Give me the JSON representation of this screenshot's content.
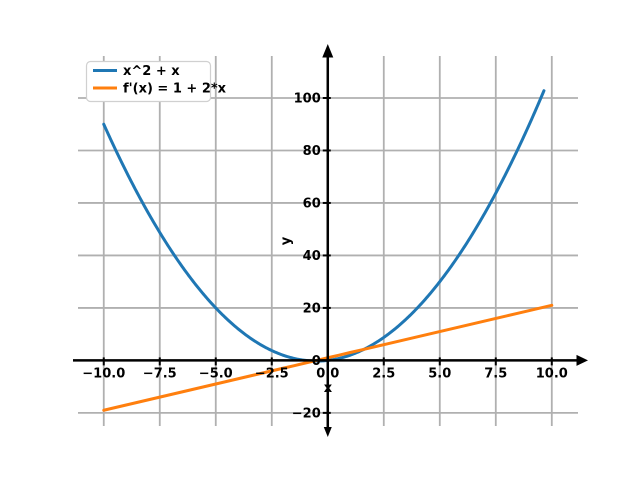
{
  "chart_data": {
    "type": "line",
    "title": "",
    "xlabel": "x",
    "ylabel": "y",
    "xlim": [
      -11.15,
      11.17
    ],
    "ylim": [
      -25,
      116
    ],
    "grid": true,
    "x_ticks": [
      -10,
      -7.5,
      -5,
      -2.5,
      0,
      2.5,
      5,
      7.5,
      10
    ],
    "x_tick_labels": [
      "−10.0",
      "−7.5",
      "−5.0",
      "−2.5",
      "0.0",
      "2.5",
      "5.0",
      "7.5",
      "10.0"
    ],
    "y_ticks": [
      -20,
      0,
      20,
      40,
      60,
      80,
      100
    ],
    "y_tick_labels": [
      "−20",
      "0",
      "20",
      "40",
      "60",
      "80",
      "100"
    ],
    "series": [
      {
        "name": "x^2 + x",
        "formula": "y = x^2 + x",
        "coeffs": [
          0,
          1,
          1
        ],
        "color": "#1f77b4",
        "x_range": [
          -10,
          9.65
        ],
        "step": 0.05,
        "sample_points": [
          {
            "x": -10,
            "y": 90
          },
          {
            "x": -7.5,
            "y": 48.75
          },
          {
            "x": -5,
            "y": 20
          },
          {
            "x": -2.5,
            "y": 3.75
          },
          {
            "x": -0.5,
            "y": -0.25
          },
          {
            "x": 0,
            "y": 0
          },
          {
            "x": 2.5,
            "y": 8.75
          },
          {
            "x": 5,
            "y": 30
          },
          {
            "x": 7.5,
            "y": 63.75
          },
          {
            "x": 9.65,
            "y": 102.77
          }
        ]
      },
      {
        "name": "f'(x) = 1 + 2*x",
        "formula": "y = 1 + 2x",
        "coeffs": [
          1,
          2
        ],
        "color": "#ff7f0e",
        "x_range": [
          -10,
          10
        ],
        "step": 0.5,
        "sample_points": [
          {
            "x": -10,
            "y": -19
          },
          {
            "x": -5,
            "y": -9
          },
          {
            "x": -0.5,
            "y": 0
          },
          {
            "x": 0,
            "y": 1
          },
          {
            "x": 5,
            "y": 11
          },
          {
            "x": 10,
            "y": 21
          }
        ]
      }
    ],
    "legend": {
      "position": "upper left",
      "entries": [
        {
          "label": "x^2 + x",
          "color": "#1f77b4"
        },
        {
          "label": "f'(x) = 1 + 2*x",
          "color": "#ff7f0e"
        }
      ]
    },
    "style": {
      "background": "#ffffff",
      "grid_color": "#b0b0b0",
      "axis_color": "#000000",
      "text_color": "#000000",
      "legend_border": "#d0d0d0",
      "legend_bg": "#ffffff"
    }
  }
}
